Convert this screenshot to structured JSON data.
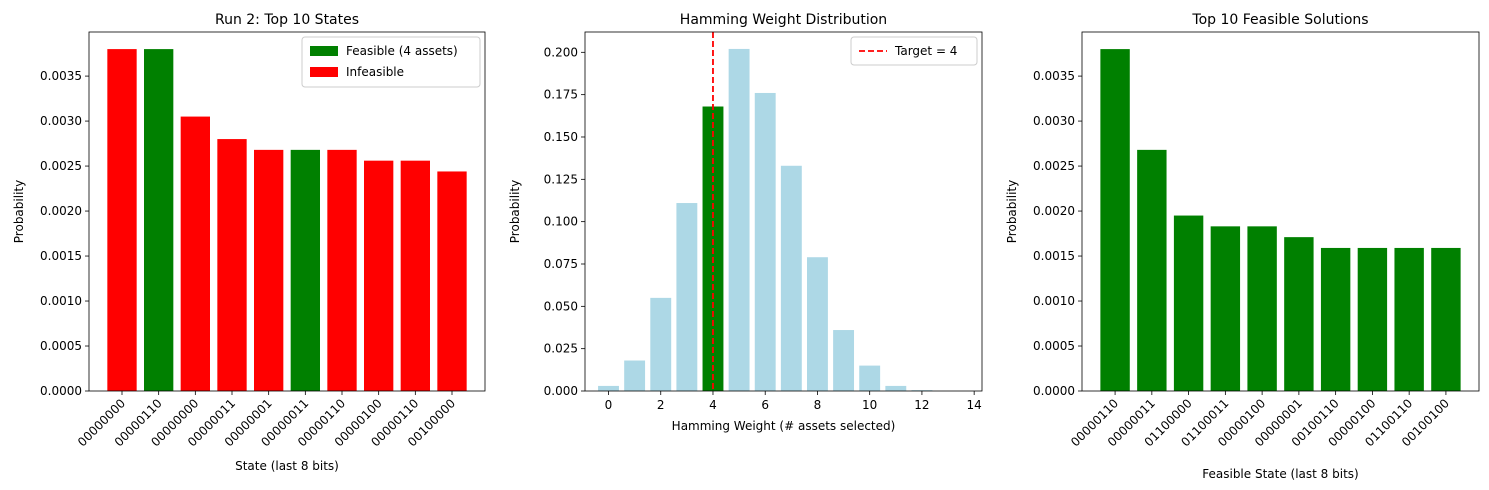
{
  "chart_data": [
    {
      "type": "bar",
      "title": "Run 2: Top 10 States",
      "xlabel": "State (last 8 bits)",
      "ylabel": "Probability",
      "categories": [
        "00000000",
        "00000110",
        "00000000",
        "00000011",
        "00000001",
        "00000011",
        "00000110",
        "00000100",
        "00000110",
        "00100000"
      ],
      "values": [
        0.0038,
        0.0038,
        0.00305,
        0.0028,
        0.00268,
        0.00268,
        0.00268,
        0.00256,
        0.00256,
        0.00244
      ],
      "bar_colors": [
        "#ff0000",
        "#008000",
        "#ff0000",
        "#ff0000",
        "#ff0000",
        "#008000",
        "#ff0000",
        "#ff0000",
        "#ff0000",
        "#ff0000"
      ],
      "ylim": [
        0,
        0.00399
      ],
      "yticks": [
        "0.0000",
        "0.0005",
        "0.0010",
        "0.0015",
        "0.0020",
        "0.0025",
        "0.0030",
        "0.0035"
      ],
      "grid": false,
      "legend_position": "top-right",
      "legend": [
        {
          "label": "Feasible (4 assets)",
          "color": "#008000"
        },
        {
          "label": "Infeasible",
          "color": "#ff0000"
        }
      ]
    },
    {
      "type": "bar",
      "title": "Hamming Weight Distribution",
      "xlabel": "Hamming Weight (# assets selected)",
      "ylabel": "Probability",
      "x": [
        0,
        1,
        2,
        3,
        4,
        5,
        6,
        7,
        8,
        9,
        10,
        11,
        12,
        13
      ],
      "values": [
        0.003,
        0.018,
        0.055,
        0.111,
        0.168,
        0.202,
        0.176,
        0.133,
        0.079,
        0.036,
        0.015,
        0.003,
        0.0005,
        0.0
      ],
      "bar_colors": [
        "#add8e6",
        "#add8e6",
        "#add8e6",
        "#add8e6",
        "#008000",
        "#add8e6",
        "#add8e6",
        "#add8e6",
        "#add8e6",
        "#add8e6",
        "#add8e6",
        "#add8e6",
        "#add8e6",
        "#add8e6"
      ],
      "xlim": [
        -0.9,
        14.3
      ],
      "ylim": [
        0,
        0.212
      ],
      "xticks": [
        "0",
        "2",
        "4",
        "6",
        "8",
        "10",
        "12",
        "14"
      ],
      "yticks": [
        "0.000",
        "0.025",
        "0.050",
        "0.075",
        "0.100",
        "0.125",
        "0.150",
        "0.175",
        "0.200"
      ],
      "target_line": {
        "x": 4,
        "color": "#ff0000",
        "label": "Target = 4"
      },
      "grid": false,
      "legend_position": "top-right"
    },
    {
      "type": "bar",
      "title": "Top 10 Feasible Solutions",
      "xlabel": "Feasible State (last 8 bits)",
      "ylabel": "Probability",
      "categories": [
        "00000110",
        "00000011",
        "01100000",
        "01100011",
        "00000100",
        "00000001",
        "00100110",
        "00000100",
        "01100110",
        "00100100"
      ],
      "values": [
        0.0038,
        0.00268,
        0.00195,
        0.00183,
        0.00183,
        0.00171,
        0.00159,
        0.00159,
        0.00159,
        0.00159
      ],
      "bar_colors": [
        "#008000",
        "#008000",
        "#008000",
        "#008000",
        "#008000",
        "#008000",
        "#008000",
        "#008000",
        "#008000",
        "#008000"
      ],
      "ylim": [
        0,
        0.00399
      ],
      "yticks": [
        "0.0000",
        "0.0005",
        "0.0010",
        "0.0015",
        "0.0020",
        "0.0025",
        "0.0030",
        "0.0035"
      ],
      "grid": false
    }
  ]
}
